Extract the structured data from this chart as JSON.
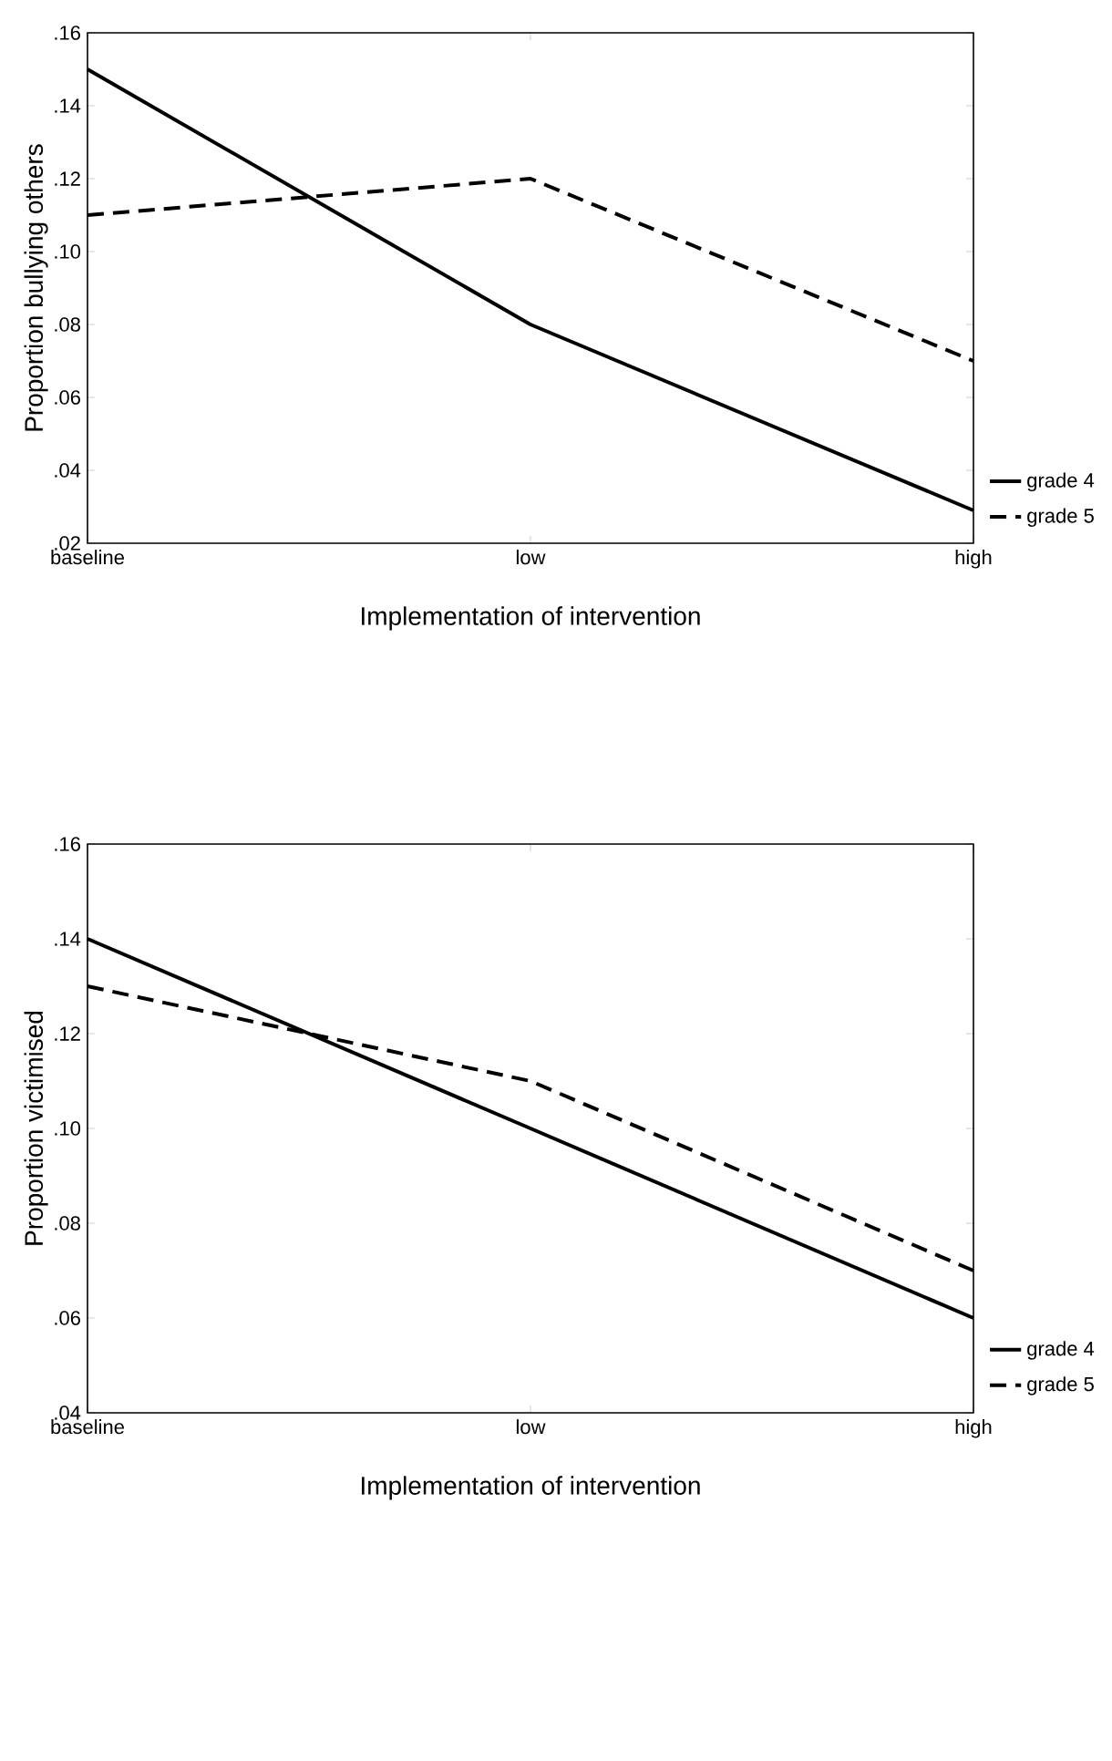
{
  "chart_data": [
    {
      "type": "line",
      "ylabel": "Proportion bullying others",
      "xlabel": "Implementation of intervention",
      "categories": [
        "baseline",
        "low",
        "high"
      ],
      "ylim": [
        0.02,
        0.16
      ],
      "yticks": [
        {
          "value": 0.02,
          "label": ".02"
        },
        {
          "value": 0.04,
          "label": ".04"
        },
        {
          "value": 0.06,
          "label": ".06"
        },
        {
          "value": 0.08,
          "label": ".08"
        },
        {
          "value": 0.1,
          "label": ".10"
        },
        {
          "value": 0.12,
          "label": ".12"
        },
        {
          "value": 0.14,
          "label": ".14"
        },
        {
          "value": 0.16,
          "label": ".16"
        }
      ],
      "legend": "bottom right",
      "grid": false,
      "series": [
        {
          "name": "grade 4",
          "color": "#000000",
          "line_style": "solid",
          "values": [
            0.15,
            0.08,
            0.029
          ]
        },
        {
          "name": "grade 5",
          "color": "#000000",
          "line_style": "dashed",
          "values": [
            0.11,
            0.12,
            0.07
          ]
        }
      ]
    },
    {
      "type": "line",
      "ylabel": "Proportion victimised",
      "xlabel": "Implementation of intervention",
      "categories": [
        "baseline",
        "low",
        "high"
      ],
      "ylim": [
        0.04,
        0.16
      ],
      "yticks": [
        {
          "value": 0.04,
          "label": ".04"
        },
        {
          "value": 0.06,
          "label": ".06"
        },
        {
          "value": 0.08,
          "label": ".08"
        },
        {
          "value": 0.1,
          "label": ".10"
        },
        {
          "value": 0.12,
          "label": ".12"
        },
        {
          "value": 0.14,
          "label": ".14"
        },
        {
          "value": 0.16,
          "label": ".16"
        }
      ],
      "legend": "bottom right",
      "grid": false,
      "series": [
        {
          "name": "grade 4",
          "color": "#000000",
          "line_style": "solid",
          "values": [
            0.14,
            0.1,
            0.06
          ]
        },
        {
          "name": "grade 5",
          "color": "#000000",
          "line_style": "dashed",
          "values": [
            0.13,
            0.11,
            0.07
          ]
        }
      ]
    }
  ]
}
